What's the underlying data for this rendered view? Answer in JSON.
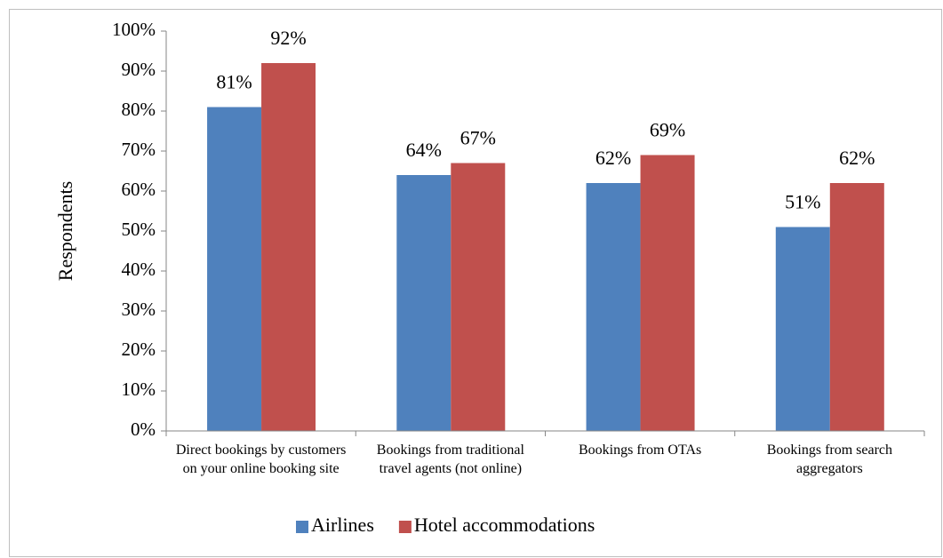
{
  "chart_data": {
    "type": "bar",
    "y_label": "Respondents",
    "categories": [
      "Direct bookings by customers on your online booking site",
      "Bookings from traditional travel agents (not online)",
      "Bookings from OTAs",
      "Bookings from search aggregators"
    ],
    "series": [
      {
        "name": "Airlines",
        "color": "#4f81bd",
        "values": [
          81,
          64,
          62,
          51
        ],
        "value_labels": [
          "81%",
          "64%",
          "62%",
          "51%"
        ]
      },
      {
        "name": "Hotel accommodations",
        "color": "#c0504d",
        "values": [
          92,
          67,
          69,
          62
        ],
        "value_labels": [
          "92%",
          "67%",
          "69%",
          "62%"
        ]
      }
    ],
    "ylim": [
      0,
      100
    ],
    "yticks": [
      {
        "value": 0,
        "label": "0%"
      },
      {
        "value": 10,
        "label": "10%"
      },
      {
        "value": 20,
        "label": "20%"
      },
      {
        "value": 30,
        "label": "30%"
      },
      {
        "value": 40,
        "label": "40%"
      },
      {
        "value": 50,
        "label": "50%"
      },
      {
        "value": 60,
        "label": "60%"
      },
      {
        "value": 70,
        "label": "70%"
      },
      {
        "value": 80,
        "label": "80%"
      },
      {
        "value": 90,
        "label": "90%"
      },
      {
        "value": 100,
        "label": "100%"
      }
    ],
    "legend": "bottom"
  }
}
